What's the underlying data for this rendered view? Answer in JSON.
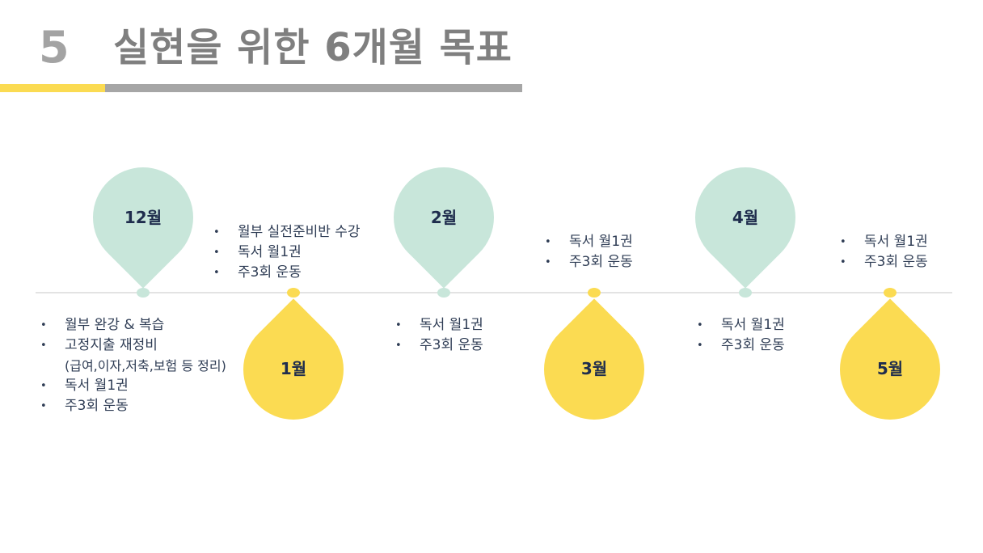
{
  "header": {
    "number": "5",
    "title": "실현을 위한 6개월 목표"
  },
  "colors": {
    "yellow": "#fbdb52",
    "mint": "#c8e6da",
    "gray": "#a6a6a6",
    "line": "#e3e3e3",
    "text": "#2f3d55"
  },
  "months": [
    {
      "label": "12월",
      "items": [
        {
          "text": "월부 완강 & 복습",
          "bullet": true
        },
        {
          "text": "고정지출 재정비",
          "bullet": true
        },
        {
          "text": "(급여,이자,저축,보험 등 정리)",
          "bullet": false
        },
        {
          "text": "독서 월1권",
          "bullet": true
        },
        {
          "text": "주3회 운동",
          "bullet": true
        }
      ]
    },
    {
      "label": "1월",
      "items": [
        {
          "text": "월부 실전준비반 수강",
          "bullet": true
        },
        {
          "text": "독서 월1권",
          "bullet": true
        },
        {
          "text": "주3회 운동",
          "bullet": true
        }
      ]
    },
    {
      "label": "2월",
      "items": [
        {
          "text": "독서 월1권",
          "bullet": true
        },
        {
          "text": "주3회 운동",
          "bullet": true
        }
      ]
    },
    {
      "label": "3월",
      "items": [
        {
          "text": "독서 월1권",
          "bullet": true
        },
        {
          "text": "주3회 운동",
          "bullet": true
        }
      ]
    },
    {
      "label": "4월",
      "items": [
        {
          "text": "독서 월1권",
          "bullet": true
        },
        {
          "text": "주3회 운동",
          "bullet": true
        }
      ]
    },
    {
      "label": "5월",
      "items": [
        {
          "text": "독서 월1권",
          "bullet": true
        },
        {
          "text": "주3회 운동",
          "bullet": true
        }
      ]
    }
  ]
}
